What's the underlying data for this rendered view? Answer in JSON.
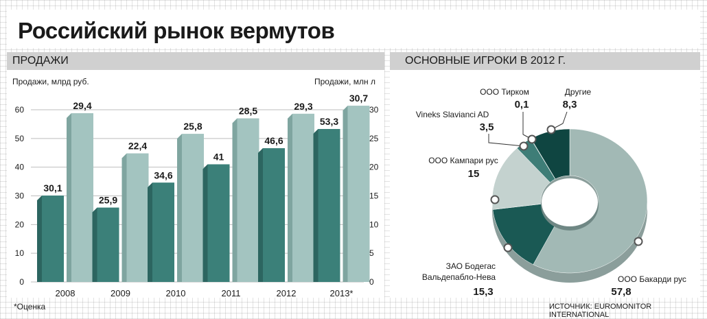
{
  "header": {
    "title": "Российский рынок вермутов"
  },
  "sections": {
    "sales": "ПРОДАЖИ",
    "players": "ОСНОВНЫЕ ИГРОКИ В 2012 Г."
  },
  "footnote": "*Оценка",
  "source": "ИСТОЧНИК: EUROMONITOR INTERNATIONAL",
  "colors": {
    "rub": "#3b8079",
    "rub_dark": "#2c6560",
    "liters": "#a3c4c0",
    "liters_dark": "#7fa5a0",
    "pie": [
      "#a2b9b5",
      "#1a5954",
      "#c4d2cf",
      "#3e7d77",
      "#1f5a56",
      "#0f4541"
    ],
    "pie_edge": "#8b9e9b"
  },
  "chart_data": [
    {
      "type": "bar",
      "title": "ПРОДАЖИ",
      "categories": [
        "2008",
        "2009",
        "2010",
        "2011",
        "2012",
        "2013*"
      ],
      "y_left_label": "Продажи, млрд руб.",
      "y_right_label": "Продажи, млн л",
      "y_left_ticks": [
        "0",
        "10",
        "20",
        "30",
        "40",
        "50",
        "60"
      ],
      "y_right_ticks": [
        "0",
        "5",
        "10",
        "15",
        "20",
        "25",
        "30"
      ],
      "ylim_left": [
        0,
        60
      ],
      "ylim_right": [
        0,
        30
      ],
      "series": [
        {
          "name": "Продажи, млрд руб.",
          "axis": "left",
          "values": [
            30.1,
            25.9,
            34.6,
            41,
            46.6,
            53.3
          ],
          "labels": [
            "30,1",
            "25,9",
            "34,6",
            "41",
            "46,6",
            "53,3"
          ]
        },
        {
          "name": "Продажи, млн л",
          "axis": "right",
          "values": [
            29.4,
            22.4,
            25.8,
            28.5,
            29.3,
            30.7
          ],
          "labels": [
            "29,4",
            "22,4",
            "25,8",
            "28,5",
            "29,3",
            "30,7"
          ]
        }
      ],
      "grid": true
    },
    {
      "type": "pie",
      "title": "ОСНОВНЫЕ ИГРОКИ В 2012 Г.",
      "donut": true,
      "slices": [
        {
          "name": "ООО Бакарди рус",
          "value": 57.8,
          "label": "57,8"
        },
        {
          "name": "ЗАО Бодегас Вальдепабло-Нева",
          "value": 15.3,
          "label": "15,3"
        },
        {
          "name": "ООО Кампари рус",
          "value": 15,
          "label": "15"
        },
        {
          "name": "Vineks Slavianci AD",
          "value": 3.5,
          "label": "3,5"
        },
        {
          "name": "ООО Тирком",
          "value": 0.1,
          "label": "0,1"
        },
        {
          "name": "Другие",
          "value": 8.3,
          "label": "8,3"
        }
      ]
    }
  ]
}
